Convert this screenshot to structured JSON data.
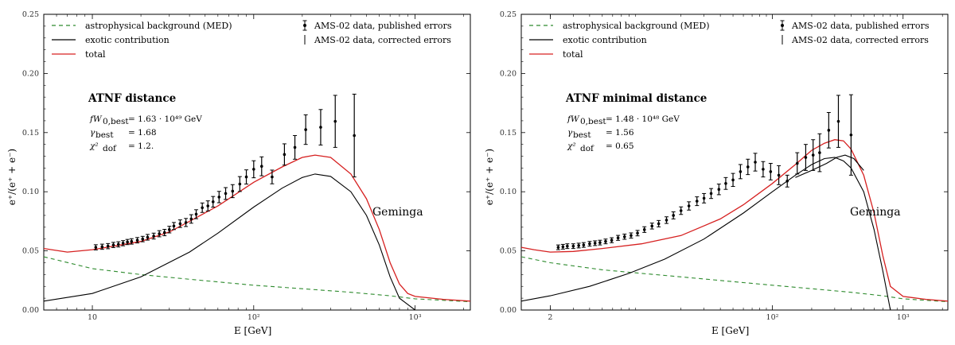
{
  "chart_data": [
    {
      "type": "line",
      "title": "",
      "xlabel": "E [GeV]",
      "ylabel": "e⁺/(e⁺ + e⁻)",
      "x_scale": "log",
      "xlim": [
        5,
        2200
      ],
      "ylim": [
        0,
        0.25
      ],
      "x_ticks": [
        {
          "v": 10,
          "label": "10"
        },
        {
          "v": 100,
          "label": "10²"
        },
        {
          "v": 1000,
          "label": "10³"
        }
      ],
      "y_ticks": [
        {
          "v": 0,
          "label": "0.00"
        },
        {
          "v": 0.05,
          "label": "0.05"
        },
        {
          "v": 0.1,
          "label": "0.10"
        },
        {
          "v": 0.15,
          "label": "0.15"
        },
        {
          "v": 0.2,
          "label": "0.20"
        },
        {
          "v": 0.25,
          "label": "0.25"
        }
      ],
      "source_label": "Geminga",
      "annotation": {
        "title": "ATNF distance",
        "rows": [
          {
            "sym": "fW",
            "sub": "0,best",
            "value": "= 1.63 · 10⁴⁹ GeV"
          },
          {
            "sym": "γ",
            "sub": "best",
            "value": "= 1.68"
          },
          {
            "sym": "χ²",
            "sub": "dof",
            "value": "= 1.2."
          }
        ]
      },
      "legend": {
        "left": [
          "astrophysical background (MED)",
          "exotic contribution",
          "total"
        ],
        "right": [
          "AMS-02 data, published errors",
          "AMS-02 data, corrected errors"
        ]
      },
      "series": [
        {
          "name": "astrophysical background (MED)",
          "color": "#2e8b2e",
          "dash": true,
          "x": [
            5,
            10,
            20,
            40,
            100,
            200,
            400,
            700,
            1000,
            2200
          ],
          "y": [
            0.045,
            0.035,
            0.03,
            0.026,
            0.021,
            0.018,
            0.015,
            0.012,
            0.0095,
            0.007
          ]
        },
        {
          "name": "exotic contribution",
          "color": "#000000",
          "x": [
            5,
            10,
            20,
            40,
            60,
            100,
            150,
            200,
            240,
            300,
            400,
            500,
            600,
            700,
            800,
            1000
          ],
          "y": [
            0.0075,
            0.014,
            0.028,
            0.049,
            0.065,
            0.087,
            0.103,
            0.112,
            0.115,
            0.113,
            0.1,
            0.08,
            0.055,
            0.028,
            0.01,
            0
          ]
        },
        {
          "name": "total",
          "color": "#d62020",
          "x": [
            5,
            7,
            10,
            15,
            20,
            30,
            40,
            60,
            100,
            150,
            200,
            240,
            300,
            400,
            500,
            600,
            700,
            800,
            900,
            1000,
            1500,
            2200
          ],
          "y": [
            0.052,
            0.049,
            0.051,
            0.055,
            0.058,
            0.066,
            0.075,
            0.088,
            0.108,
            0.121,
            0.129,
            0.131,
            0.129,
            0.115,
            0.094,
            0.068,
            0.04,
            0.022,
            0.014,
            0.0115,
            0.009,
            0.0075
          ]
        }
      ],
      "data_points": {
        "name": "AMS-02 data, published errors",
        "x": [
          10.5,
          11.5,
          12.5,
          13.5,
          14.5,
          15.5,
          16.5,
          17.5,
          19,
          20.5,
          22,
          24,
          26,
          28,
          30,
          32,
          35,
          38,
          41,
          44,
          48,
          52,
          56,
          61,
          67,
          74,
          82,
          90,
          100,
          112,
          130,
          155,
          180,
          210,
          260,
          320,
          420
        ],
        "y": [
          0.053,
          0.0535,
          0.054,
          0.055,
          0.0555,
          0.0565,
          0.0575,
          0.058,
          0.059,
          0.06,
          0.0615,
          0.0625,
          0.0645,
          0.0655,
          0.068,
          0.071,
          0.073,
          0.074,
          0.077,
          0.081,
          0.0865,
          0.088,
          0.0915,
          0.0955,
          0.0985,
          0.1005,
          0.1065,
          0.1125,
          0.119,
          0.1215,
          0.1125,
          0.1315,
          0.1375,
          0.1525,
          0.1545,
          0.1595,
          0.1475
        ],
        "err": [
          0.0022,
          0.0022,
          0.0022,
          0.0022,
          0.0022,
          0.0022,
          0.0022,
          0.0023,
          0.0023,
          0.0023,
          0.0024,
          0.0025,
          0.0026,
          0.0027,
          0.0028,
          0.003,
          0.0032,
          0.0034,
          0.0036,
          0.0038,
          0.004,
          0.0043,
          0.0045,
          0.0048,
          0.005,
          0.0055,
          0.0063,
          0.006,
          0.0072,
          0.008,
          0.0058,
          0.009,
          0.01,
          0.0125,
          0.015,
          0.022,
          0.035
        ]
      }
    },
    {
      "type": "line",
      "title": "",
      "xlabel": "E [GeV]",
      "ylabel": "e⁺/(e⁺ + e⁻)",
      "x_scale": "log",
      "xlim": [
        1.2,
        2200
      ],
      "ylim": [
        0,
        0.25
      ],
      "x_ticks": [
        {
          "v": 2,
          "label": "2"
        },
        {
          "v": 100,
          "label": "10²"
        },
        {
          "v": 1000,
          "label": "10³"
        }
      ],
      "y_ticks": [
        {
          "v": 0,
          "label": "0.00"
        },
        {
          "v": 0.05,
          "label": "0.05"
        },
        {
          "v": 0.1,
          "label": "0.10"
        },
        {
          "v": 0.15,
          "label": "0.15"
        },
        {
          "v": 0.2,
          "label": "0.20"
        },
        {
          "v": 0.25,
          "label": "0.25"
        }
      ],
      "source_label": "Geminga",
      "annotation": {
        "title": "ATNF minimal distance",
        "rows": [
          {
            "sym": "fW",
            "sub": "0,best",
            "value": "= 1.48 · 10⁴⁸ GeV"
          },
          {
            "sym": "γ",
            "sub": "best",
            "value": "= 1.56"
          },
          {
            "sym": "χ²",
            "sub": "dof",
            "value": "= 0.65"
          }
        ]
      },
      "legend": {
        "left": [
          "astrophysical background (MED)",
          "exotic contribution",
          "total"
        ],
        "right": [
          "AMS-02 data, published errors",
          "AMS-02 data, corrected errors"
        ]
      },
      "series": [
        {
          "name": "astrophysical background (MED)",
          "color": "#2e8b2e",
          "dash": true,
          "x": [
            1.2,
            2,
            5,
            10,
            20,
            50,
            100,
            200,
            400,
            700,
            1000,
            2200
          ],
          "y": [
            0.045,
            0.04,
            0.034,
            0.031,
            0.028,
            0.024,
            0.021,
            0.018,
            0.015,
            0.012,
            0.0095,
            0.007
          ]
        },
        {
          "name": "exotic contribution",
          "color": "#000000",
          "x": [
            1.2,
            2,
            4,
            8,
            15,
            30,
            60,
            100,
            150,
            200,
            250,
            300,
            350,
            400,
            500,
            600,
            700,
            800
          ],
          "y": [
            0.0075,
            0.012,
            0.02,
            0.031,
            0.043,
            0.06,
            0.082,
            0.1,
            0.114,
            0.123,
            0.128,
            0.129,
            0.126,
            0.12,
            0.1,
            0.068,
            0.033,
            0
          ]
        },
        {
          "name": "total",
          "color": "#d62020",
          "x": [
            1.2,
            1.5,
            2,
            3,
            5,
            10,
            20,
            40,
            60,
            100,
            150,
            200,
            250,
            300,
            350,
            400,
            500,
            600,
            700,
            800,
            1000,
            1500,
            2200
          ],
          "y": [
            0.053,
            0.051,
            0.049,
            0.0495,
            0.052,
            0.056,
            0.063,
            0.077,
            0.089,
            0.107,
            0.123,
            0.135,
            0.141,
            0.144,
            0.143,
            0.136,
            0.114,
            0.082,
            0.046,
            0.02,
            0.0115,
            0.009,
            0.0075
          ]
        },
        {
          "name": "",
          "color": "#000000",
          "x": [
            150,
            200,
            260,
            310,
            360,
            420,
            500
          ],
          "y": [
            0.112,
            0.118,
            0.124,
            0.129,
            0.131,
            0.128,
            0.118
          ]
        }
      ],
      "data_points": {
        "name": "AMS-02 data, published errors",
        "x": [
          2.3,
          2.5,
          2.7,
          3.0,
          3.3,
          3.6,
          4.0,
          4.4,
          4.8,
          5.3,
          5.9,
          6.6,
          7.4,
          8.3,
          9.3,
          10.5,
          12,
          13.5,
          15.5,
          17.5,
          20,
          23,
          26.5,
          30,
          34,
          39,
          44,
          50,
          57,
          65,
          74,
          85,
          97,
          112,
          130,
          155,
          180,
          205,
          230,
          270,
          320,
          400
        ],
        "y": [
          0.053,
          0.0535,
          0.054,
          0.054,
          0.0545,
          0.055,
          0.056,
          0.0565,
          0.057,
          0.058,
          0.059,
          0.061,
          0.062,
          0.063,
          0.065,
          0.068,
          0.071,
          0.073,
          0.076,
          0.08,
          0.084,
          0.088,
          0.092,
          0.0945,
          0.0985,
          0.102,
          0.107,
          0.11,
          0.117,
          0.121,
          0.125,
          0.119,
          0.117,
          0.114,
          0.109,
          0.124,
          0.129,
          0.131,
          0.133,
          0.152,
          0.1595,
          0.148
        ],
        "err": [
          0.002,
          0.002,
          0.002,
          0.002,
          0.002,
          0.002,
          0.002,
          0.002,
          0.002,
          0.002,
          0.0021,
          0.0021,
          0.0022,
          0.0022,
          0.0023,
          0.0024,
          0.0025,
          0.0027,
          0.0028,
          0.003,
          0.0032,
          0.0035,
          0.0037,
          0.004,
          0.0042,
          0.0045,
          0.005,
          0.0055,
          0.006,
          0.0065,
          0.0075,
          0.0065,
          0.007,
          0.008,
          0.005,
          0.009,
          0.011,
          0.013,
          0.016,
          0.015,
          0.022,
          0.034
        ]
      }
    }
  ]
}
